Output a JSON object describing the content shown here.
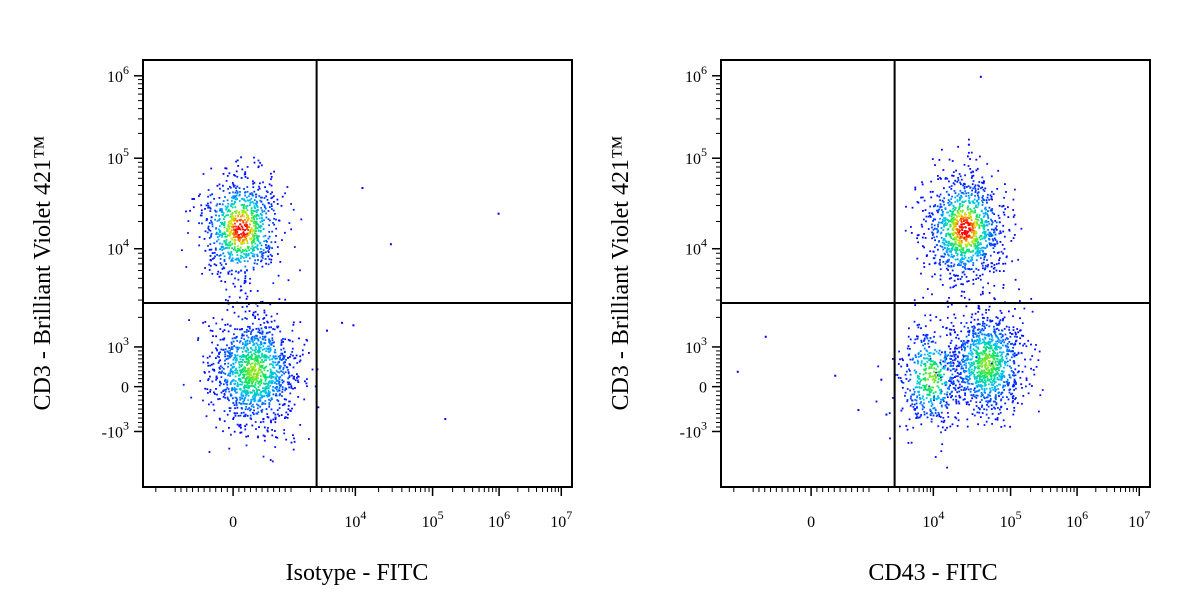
{
  "chart_data": [
    {
      "type": "scatter",
      "subtype": "flow-cytometry-density-dot-plot",
      "xlabel": "Isotype - FITC",
      "ylabel": "CD3 - Brilliant Violet 421™",
      "x_scale": "biexponential",
      "y_scale": "biexponential",
      "xlim": [
        -10000,
        10000000
      ],
      "ylim": [
        -5000,
        1000000
      ],
      "x_ticks": [
        {
          "value": 0,
          "base": "0",
          "exp": ""
        },
        {
          "value": 10000,
          "base": "10",
          "exp": "4"
        },
        {
          "value": 100000,
          "base": "10",
          "exp": "5"
        },
        {
          "value": 1000000,
          "base": "10",
          "exp": "6"
        },
        {
          "value": 10000000,
          "base": "10",
          "exp": "7"
        }
      ],
      "y_ticks": [
        {
          "value": -1000,
          "base": "-10",
          "exp": "3"
        },
        {
          "value": 0,
          "base": "0",
          "exp": ""
        },
        {
          "value": 1000,
          "base": "10",
          "exp": "3"
        },
        {
          "value": 10000,
          "base": "10",
          "exp": "4"
        },
        {
          "value": 100000,
          "base": "10",
          "exp": "5"
        },
        {
          "value": 1000000,
          "base": "10",
          "exp": "6"
        }
      ],
      "quadrant_gate": {
        "x": 2500,
        "y": 2800
      },
      "populations": [
        {
          "x_center": 120,
          "y_center": 17000,
          "events": 900
        },
        {
          "x_center": 350,
          "y_center": 400,
          "events": 1300
        }
      ],
      "outliers": [
        {
          "x": 12000,
          "y": 48000
        },
        {
          "x": 28000,
          "y": 11500
        },
        {
          "x": 950000,
          "y": 25000
        },
        {
          "x": 150000,
          "y": -700
        },
        {
          "x": 3500,
          "y": 1500
        },
        {
          "x": 6000,
          "y": 1800
        },
        {
          "x": 9000,
          "y": 1700
        }
      ]
    },
    {
      "type": "scatter",
      "subtype": "flow-cytometry-density-dot-plot",
      "xlabel": "CD43 - FITC",
      "ylabel": "CD3 - Brilliant Violet 421™",
      "x_scale": "biexponential",
      "y_scale": "biexponential",
      "xlim": [
        -10000,
        10000000
      ],
      "ylim": [
        -5000,
        1000000
      ],
      "x_ticks": [
        {
          "value": 0,
          "base": "0",
          "exp": ""
        },
        {
          "value": 10000,
          "base": "10",
          "exp": "4"
        },
        {
          "value": 100000,
          "base": "10",
          "exp": "5"
        },
        {
          "value": 1000000,
          "base": "10",
          "exp": "6"
        },
        {
          "value": 10000000,
          "base": "10",
          "exp": "7"
        }
      ],
      "y_ticks": [
        {
          "value": -1000,
          "base": "-10",
          "exp": "3"
        },
        {
          "value": 0,
          "base": "0",
          "exp": ""
        },
        {
          "value": 1000,
          "base": "10",
          "exp": "3"
        },
        {
          "value": 10000,
          "base": "10",
          "exp": "4"
        },
        {
          "value": 100000,
          "base": "10",
          "exp": "5"
        },
        {
          "value": 1000000,
          "base": "10",
          "exp": "6"
        }
      ],
      "quadrant_gate": {
        "x": 2500,
        "y": 2800
      },
      "populations": [
        {
          "x_center": 25000,
          "y_center": 17000,
          "events": 1100
        },
        {
          "x_center": 48000,
          "y_center": 600,
          "events": 1100
        },
        {
          "x_center": 9000,
          "y_center": 250,
          "events": 500
        }
      ],
      "outliers": [
        {
          "x": 40000,
          "y": 1000000
        },
        {
          "x": 28000,
          "y": 150000
        },
        {
          "x": -800,
          "y": 1300
        },
        {
          "x": -1800,
          "y": 400
        },
        {
          "x": 400,
          "y": 300
        },
        {
          "x": 1500,
          "y": 200
        },
        {
          "x": 800,
          "y": -500
        },
        {
          "x": 1800,
          "y": -600
        }
      ]
    }
  ],
  "colors": {
    "density_low": "#0000ff",
    "density_mid": "#00ff80",
    "density_high": "#ff0000",
    "axis": "#000000"
  }
}
